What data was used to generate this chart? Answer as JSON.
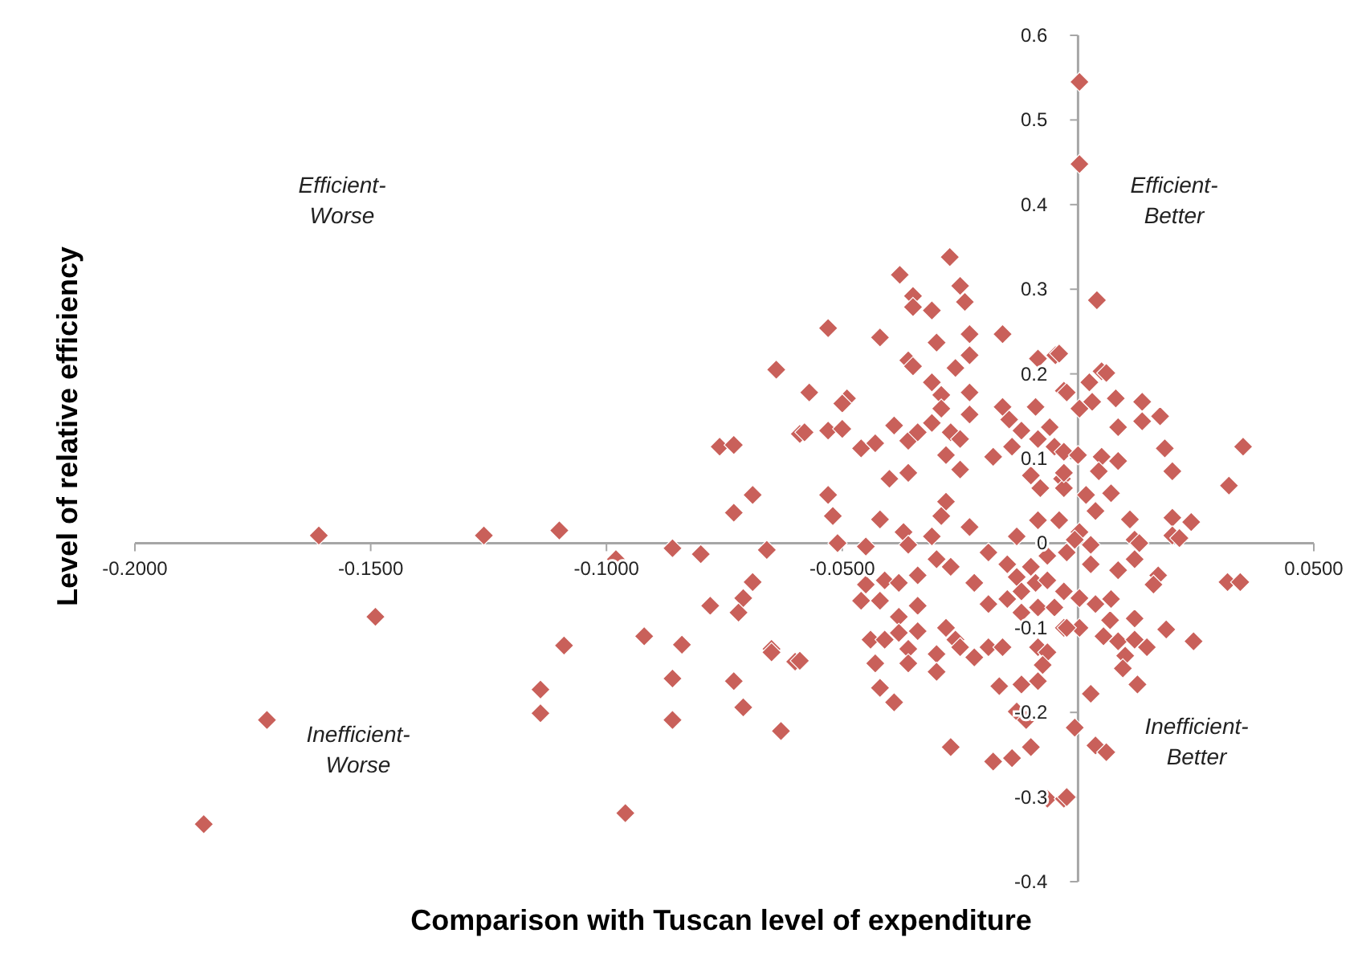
{
  "chart_data": {
    "type": "scatter",
    "xlabel": "Comparison with Tuscan level of expenditure",
    "ylabel": "Level of relative efficiency",
    "xlim": [
      -0.2,
      0.05
    ],
    "ylim": [
      -0.4,
      0.6
    ],
    "xticks": [
      {
        "value": -0.2,
        "label": "-0.2000"
      },
      {
        "value": -0.15,
        "label": "-0.1500"
      },
      {
        "value": -0.1,
        "label": "-0.1000"
      },
      {
        "value": -0.05,
        "label": "-0.0500"
      },
      {
        "value": 0,
        "label": null
      },
      {
        "value": 0.05,
        "label": "0.0500"
      }
    ],
    "yticks": [
      -0.4,
      -0.3,
      -0.2,
      -0.1,
      0,
      0.1,
      0.2,
      0.3,
      0.4,
      0.5,
      0.6
    ],
    "grid": false,
    "marker": "diamond",
    "annotations": [
      "Efficient-Worse",
      "Efficient-Better",
      "Inefficient-Worse",
      "Inefficient-Better"
    ],
    "series": [
      {
        "color": "#c9605a",
        "x": [
          -0.1854,
          -0.172,
          -0.161,
          -0.149,
          -0.126,
          -0.11,
          -0.109,
          -0.114,
          -0.114,
          -0.098,
          -0.096,
          -0.092,
          -0.086,
          -0.086,
          -0.086,
          -0.084,
          -0.08,
          -0.078,
          -0.076,
          -0.073,
          -0.069,
          -0.073,
          -0.066,
          -0.069,
          -0.071,
          -0.072,
          -0.065,
          -0.065,
          -0.06,
          -0.073,
          -0.071,
          -0.063,
          -0.064,
          -0.059,
          -0.0272,
          -0.0378,
          -0.035,
          -0.035,
          -0.031,
          -0.025,
          -0.024,
          -0.053,
          -0.042,
          -0.03,
          -0.023,
          -0.016,
          -0.036,
          -0.035,
          -0.026,
          -0.023,
          -0.0085,
          -0.0048,
          -0.057,
          -0.049,
          -0.05,
          -0.031,
          -0.029,
          -0.023,
          -0.003,
          -0.058,
          -0.053,
          -0.05,
          -0.046,
          -0.043,
          -0.039,
          -0.036,
          -0.034,
          -0.031,
          -0.029,
          -0.027,
          -0.023,
          -0.025,
          -0.028,
          -0.025,
          -0.016,
          -0.0146,
          -0.018,
          -0.014,
          -0.012,
          -0.0085,
          -0.006,
          -0.005,
          -0.003,
          -0.009,
          -0.036,
          -0.04,
          -0.053,
          -0.052,
          -0.042,
          -0.037,
          -0.028,
          -0.029,
          -0.023,
          -0.01,
          -0.008,
          -0.0034,
          -0.003,
          -0.013,
          -0.0085,
          -0.004,
          -0.051,
          -0.045,
          -0.031,
          -0.036,
          -0.045,
          -0.041,
          -0.038,
          -0.034,
          -0.03,
          -0.027,
          -0.046,
          -0.042,
          -0.034,
          -0.038,
          -0.034,
          -0.044,
          -0.041,
          -0.038,
          -0.036,
          -0.028,
          -0.026,
          -0.025,
          -0.03,
          -0.036,
          -0.043,
          -0.03,
          -0.022,
          -0.019,
          -0.016,
          -0.042,
          -0.039,
          -0.059,
          -0.027,
          -0.018,
          -0.014,
          -0.01,
          -0.0167,
          -0.012,
          -0.0085,
          -0.013,
          -0.011,
          -0.0065,
          -0.003,
          -0.019,
          -0.015,
          -0.013,
          -0.01,
          -0.022,
          -0.019,
          -0.015,
          -0.012,
          -0.009,
          -0.0065,
          -0.003,
          -0.012,
          -0.0085,
          -0.005,
          -0.003,
          0.0003,
          -0.0085,
          -0.0065,
          -0.0075,
          -0.0065,
          -0.0024,
          -0.0007,
          0.0003,
          0.0003,
          0.004,
          0.005,
          0.006,
          0.0024,
          -0.0024,
          -0.004,
          0.003,
          0.0003,
          0.008,
          0.0136,
          0.0174,
          0.0136,
          0.0085,
          0.0184,
          0.035,
          0.02,
          0.032,
          0.0,
          0.005,
          0.0085,
          0.0044,
          -0.003,
          0.007,
          0.0017,
          0.0037,
          0.011,
          0.02,
          0.024,
          0.02,
          0.012,
          0.0003,
          0.013,
          0.0215,
          0.0317,
          0.0344,
          0.017,
          0.016,
          0.0085,
          0.012,
          0.0027,
          0.0003,
          0.0037,
          0.007,
          0.012,
          0.0187,
          0.0245,
          0.0054,
          0.0085,
          0.012,
          0.0146,
          0.01,
          0.0095,
          0.0126,
          0.0068,
          -0.0024,
          0.0027,
          0.0037,
          0.006,
          -0.0024,
          -0.0007,
          0.0027
        ],
        "values": [
          -0.332,
          -0.209,
          0.009,
          -0.087,
          0.009,
          0.015,
          -0.121,
          -0.173,
          -0.201,
          -0.019,
          -0.319,
          -0.11,
          -0.006,
          -0.16,
          -0.209,
          -0.12,
          -0.013,
          -0.074,
          0.114,
          0.116,
          0.057,
          0.036,
          -0.008,
          -0.046,
          -0.065,
          -0.082,
          -0.125,
          -0.129,
          -0.14,
          -0.163,
          -0.194,
          -0.222,
          0.205,
          0.129,
          0.338,
          0.317,
          0.292,
          0.279,
          0.275,
          0.304,
          0.285,
          0.254,
          0.243,
          0.237,
          0.247,
          0.247,
          0.216,
          0.209,
          0.207,
          0.222,
          0.218,
          0.222,
          0.178,
          0.171,
          0.165,
          0.19,
          0.175,
          0.178,
          0.18,
          0.131,
          0.133,
          0.135,
          0.112,
          0.118,
          0.139,
          0.121,
          0.131,
          0.142,
          0.159,
          0.131,
          0.152,
          0.123,
          0.104,
          0.087,
          0.161,
          0.146,
          0.102,
          0.114,
          0.133,
          0.123,
          0.137,
          0.114,
          0.108,
          0.161,
          0.083,
          0.076,
          0.057,
          0.032,
          0.028,
          0.013,
          0.049,
          0.032,
          0.019,
          0.08,
          0.065,
          0.076,
          0.065,
          0.008,
          0.027,
          0.027,
          0.0,
          -0.004,
          0.008,
          -0.002,
          -0.049,
          -0.044,
          -0.047,
          -0.038,
          -0.019,
          -0.028,
          -0.068,
          -0.068,
          -0.074,
          -0.087,
          -0.104,
          -0.114,
          -0.114,
          -0.106,
          -0.125,
          -0.1,
          -0.114,
          -0.123,
          -0.131,
          -0.142,
          -0.142,
          -0.152,
          -0.135,
          -0.123,
          -0.123,
          -0.171,
          -0.188,
          -0.139,
          -0.241,
          -0.258,
          -0.254,
          -0.241,
          -0.169,
          -0.167,
          -0.163,
          -0.199,
          -0.209,
          -0.302,
          -0.302,
          -0.011,
          -0.025,
          -0.04,
          -0.028,
          -0.047,
          -0.072,
          -0.066,
          -0.057,
          -0.047,
          -0.044,
          -0.057,
          -0.082,
          -0.076,
          -0.076,
          -0.1,
          -0.1,
          -0.123,
          -0.129,
          -0.144,
          -0.015,
          -0.011,
          -0.218,
          0.545,
          0.448,
          0.287,
          0.203,
          0.201,
          0.19,
          0.178,
          0.224,
          0.167,
          0.159,
          0.171,
          0.167,
          0.15,
          0.144,
          0.137,
          0.112,
          0.114,
          0.085,
          0.068,
          0.104,
          0.102,
          0.097,
          0.085,
          0.083,
          0.059,
          0.057,
          0.038,
          0.028,
          0.03,
          0.025,
          0.009,
          0.004,
          0.013,
          0.0,
          0.006,
          -0.046,
          -0.046,
          -0.038,
          -0.049,
          -0.032,
          -0.019,
          -0.025,
          -0.065,
          -0.072,
          -0.066,
          -0.089,
          -0.102,
          -0.116,
          -0.11,
          -0.116,
          -0.114,
          -0.123,
          -0.133,
          -0.148,
          -0.167,
          -0.091,
          -0.1,
          -0.178,
          -0.239,
          -0.247,
          -0.3,
          0.004,
          -0.002
        ]
      }
    ]
  }
}
